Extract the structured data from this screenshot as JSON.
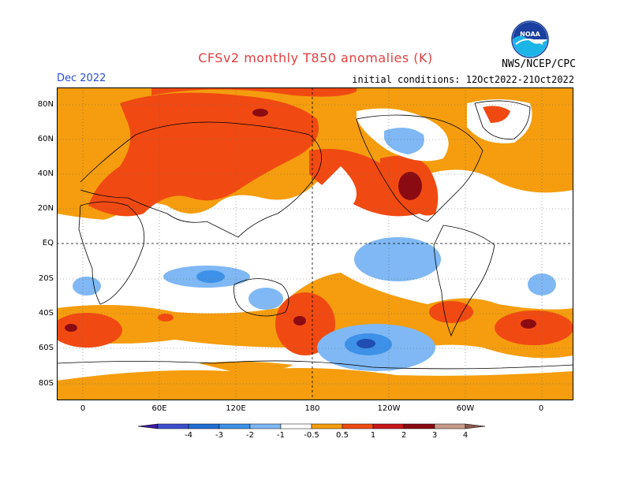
{
  "header": {
    "title": "CFSv2 monthly T850 anomalies (K)",
    "month": "Dec 2022",
    "init_conditions": "initial conditions: 12Oct2022-21Oct2022",
    "agency": "NWS/NCEP/CPC",
    "logo_text": "NOAA"
  },
  "axes": {
    "lat_labels": [
      "80N",
      "60N",
      "40N",
      "20N",
      "EQ",
      "20S",
      "40S",
      "60S",
      "80S"
    ],
    "lon_labels": [
      "0",
      "60E",
      "120E",
      "180",
      "120W",
      "60W",
      "0"
    ]
  },
  "colorbar": {
    "labels": [
      "-4",
      "-3",
      "-2",
      "-1",
      "-0.5",
      "0.5",
      "1",
      "2",
      "3",
      "4"
    ],
    "colors": [
      "#3a1a9e",
      "#3d4fcf",
      "#1f6ed4",
      "#3d91e8",
      "#7fb8f4",
      "#ffffff",
      "#f59d0e",
      "#f04a12",
      "#c8161a",
      "#8b0b12",
      "#c79a8a",
      "#8a5a4a"
    ]
  },
  "colors": {
    "orange": "#f59d0e",
    "red_orange": "#f04a12",
    "red": "#c8161a",
    "dark_red": "#8b0b12",
    "light_blue": "#7fb8f4",
    "mid_blue": "#3d91e8",
    "blue": "#1f6ed4",
    "dark_blue": "#1f4eb0"
  }
}
